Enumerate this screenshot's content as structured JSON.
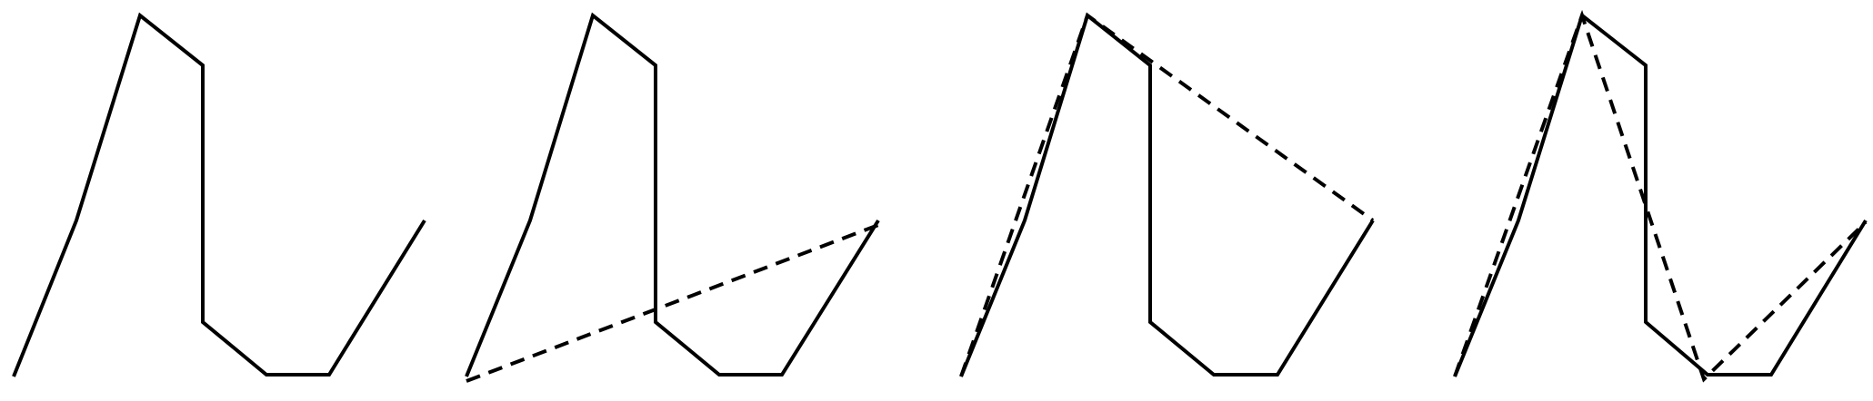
{
  "figure": {
    "panel_count": 4,
    "line_color": "#000000",
    "background_color": "#ffffff",
    "panels": [
      {
        "name": "original-polyline",
        "has_dashed_simplification": false
      },
      {
        "name": "simplification-step-1",
        "has_dashed_simplification": true
      },
      {
        "name": "simplification-step-2",
        "has_dashed_simplification": true
      },
      {
        "name": "simplification-step-3",
        "has_dashed_simplification": true
      }
    ]
  }
}
